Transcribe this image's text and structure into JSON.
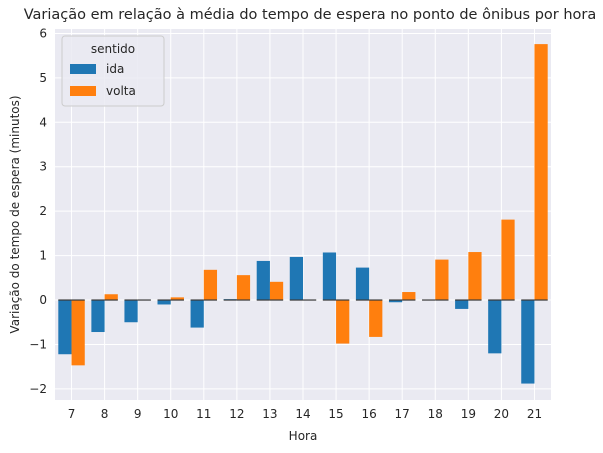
{
  "chart_data": {
    "type": "bar",
    "title": "Variação em relação à média do tempo de espera no ponto de ônibus por hora",
    "xlabel": "Hora",
    "ylabel": "Variação do tempo de espera (minutos)",
    "categories": [
      "7",
      "8",
      "9",
      "10",
      "11",
      "12",
      "13",
      "14",
      "15",
      "16",
      "17",
      "18",
      "19",
      "20",
      "21"
    ],
    "yticks": [
      -2,
      -1,
      0,
      1,
      2,
      3,
      4,
      5,
      6
    ],
    "ylim": [
      -2.25,
      6.1
    ],
    "grid": true,
    "legend": {
      "title": "sentido",
      "position": "top-left"
    },
    "series": [
      {
        "name": "ida",
        "color": "#1f77b4",
        "values": [
          -1.22,
          -0.72,
          -0.5,
          -0.1,
          -0.62,
          0.02,
          0.88,
          0.97,
          1.07,
          0.73,
          -0.05,
          0.0,
          -0.2,
          -1.2,
          -1.88
        ]
      },
      {
        "name": "volta",
        "color": "#ff7f0e",
        "values": [
          -1.47,
          0.13,
          0.0,
          0.06,
          0.68,
          0.56,
          0.41,
          0.0,
          -0.98,
          -0.83,
          0.18,
          0.91,
          1.08,
          1.81,
          5.76
        ]
      }
    ]
  }
}
